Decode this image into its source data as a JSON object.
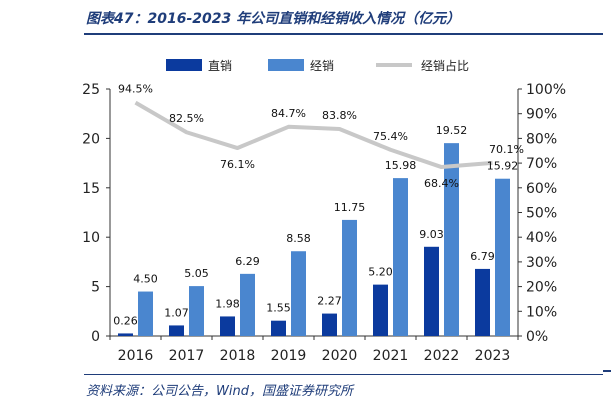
{
  "title": "图表47：2016-2023 年公司直销和经销收入情况（亿元）",
  "source": "资料来源：公司公告，Wind，国盛证券研究所",
  "colors": {
    "direct": "#0b3a9e",
    "distributor": "#4a86cf",
    "share": "#c8c8c8",
    "accent": "#1f3d7a"
  },
  "chart_data": {
    "type": "bar",
    "categories": [
      "2016",
      "2017",
      "2018",
      "2019",
      "2020",
      "2021",
      "2022",
      "2023"
    ],
    "series": [
      {
        "name": "直销",
        "type": "bar",
        "axis": "left",
        "values": [
          0.26,
          1.07,
          1.98,
          1.55,
          2.27,
          5.2,
          9.03,
          6.79
        ],
        "labels": [
          "0.26",
          "1.07",
          "1.98",
          "1.55",
          "2.27",
          "5.20",
          "9.03",
          "6.79"
        ]
      },
      {
        "name": "经销",
        "type": "bar",
        "axis": "left",
        "values": [
          4.5,
          5.05,
          6.29,
          8.58,
          11.75,
          15.98,
          19.52,
          15.92
        ],
        "labels": [
          "4.50",
          "5.05",
          "6.29",
          "8.58",
          "11.75",
          "15.98",
          "19.52",
          "15.92"
        ]
      },
      {
        "name": "经销占比",
        "type": "line",
        "axis": "right",
        "values": [
          94.5,
          82.5,
          76.1,
          84.7,
          83.8,
          75.4,
          68.4,
          70.1
        ],
        "labels": [
          "94.5%",
          "82.5%",
          "76.1%",
          "84.7%",
          "83.8%",
          "75.4%",
          "68.4%",
          "70.1%"
        ]
      }
    ],
    "ylim": [
      0,
      25
    ],
    "yticks": [
      "0",
      "5",
      "10",
      "15",
      "20",
      "25"
    ],
    "y2lim": [
      0,
      100
    ],
    "y2ticks": [
      "0%",
      "10%",
      "20%",
      "30%",
      "40%",
      "50%",
      "60%",
      "70%",
      "80%",
      "90%",
      "100%"
    ],
    "legend_position": "top",
    "grid": false
  }
}
